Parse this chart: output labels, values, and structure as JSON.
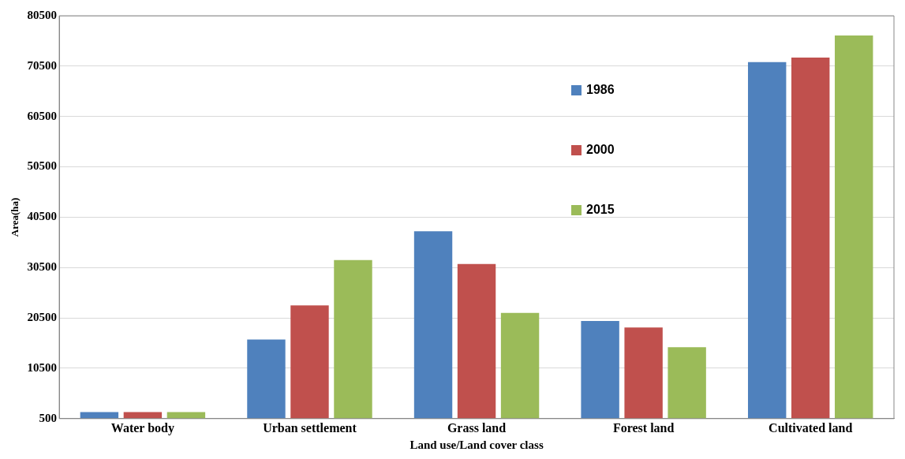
{
  "chart_data": {
    "type": "bar",
    "xlabel": "Land use/Land cover class",
    "ylabel": "Area(ha)",
    "categories": [
      "Water body",
      "Urban settlement",
      "Grass land",
      "Forest land",
      "Cultivated land"
    ],
    "series": [
      {
        "name": "1986",
        "color": "#4f81bd",
        "values": [
          1800,
          16200,
          37700,
          19900,
          71300
        ]
      },
      {
        "name": "2000",
        "color": "#c0504d",
        "values": [
          1800,
          23000,
          31200,
          18600,
          72200
        ]
      },
      {
        "name": "2015",
        "color": "#9bbb59",
        "values": [
          1800,
          32000,
          21500,
          14700,
          76600
        ]
      }
    ],
    "ylim": [
      500,
      80500
    ],
    "yticks": [
      500,
      10500,
      20500,
      30500,
      40500,
      50500,
      60500,
      70500,
      80500
    ],
    "grid": "y",
    "legend": "top right"
  }
}
